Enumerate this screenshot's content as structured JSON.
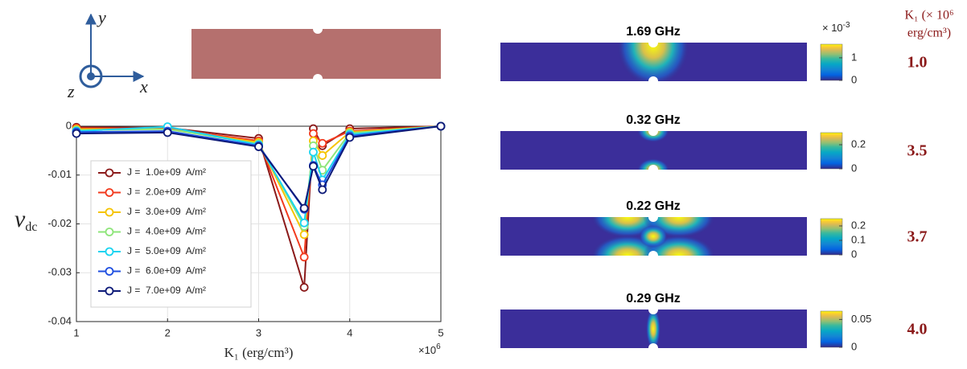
{
  "axes_diagram": {
    "x": "x",
    "y": "y",
    "z": "z"
  },
  "k1_header": {
    "line1": "K₁ (× 10⁶",
    "line2": "erg/cm³)"
  },
  "chart_data": [
    {
      "type": "line",
      "xlabel": "K₁ (erg/cm³)",
      "ylabel": {
        "symbol": "v",
        "sub": "dc"
      },
      "x_exponent": {
        "base": "×10",
        "exp": "6"
      },
      "x": [
        1,
        2,
        3,
        3.5,
        3.6,
        3.7,
        4,
        5
      ],
      "xlim": [
        1,
        5
      ],
      "xticks": [
        1,
        2,
        3,
        4,
        5
      ],
      "ylim": [
        -0.04,
        0
      ],
      "yticks": [
        0,
        -0.01,
        -0.02,
        -0.03,
        -0.04
      ],
      "grid": true,
      "legend": "lower-left",
      "series": [
        {
          "name": "J =  1.0e+09  A/m²",
          "color": "#8b1a1a",
          "values": [
            -0.0002,
            -0.0003,
            -0.0025,
            -0.033,
            -0.0005,
            -0.004,
            -0.0005,
            0
          ]
        },
        {
          "name": "J =  2.0e+09  A/m²",
          "color": "#f23a1e",
          "values": [
            -0.0004,
            -0.0005,
            -0.003,
            -0.0268,
            -0.0015,
            -0.0035,
            -0.001,
            0
          ]
        },
        {
          "name": "J =  3.0e+09  A/m²",
          "color": "#f5c400",
          "values": [
            -0.0006,
            -0.0006,
            -0.0033,
            -0.0222,
            -0.003,
            -0.006,
            -0.0012,
            0
          ]
        },
        {
          "name": "J =  4.0e+09  A/m²",
          "color": "#8ee57a",
          "values": [
            -0.0008,
            -0.0006,
            -0.0036,
            -0.0205,
            -0.004,
            -0.009,
            -0.0014,
            0
          ]
        },
        {
          "name": "J =  5.0e+09  A/m²",
          "color": "#1ad4f0",
          "values": [
            -0.001,
            -0.0001,
            -0.0038,
            -0.0198,
            -0.0053,
            -0.011,
            -0.0017,
            0
          ]
        },
        {
          "name": "J =  6.0e+09  A/m²",
          "color": "#1f4fe0",
          "values": [
            -0.0012,
            -0.001,
            -0.004,
            -0.017,
            -0.008,
            -0.012,
            -0.002,
            0
          ]
        },
        {
          "name": "J =  7.0e+09  A/m²",
          "color": "#0d1a78",
          "values": [
            -0.0015,
            -0.0013,
            -0.0042,
            -0.0168,
            -0.0082,
            -0.013,
            -0.0023,
            0
          ]
        }
      ]
    },
    {
      "type": "heatmap",
      "title": "1.69 GHz",
      "clim": [
        0,
        1.6
      ],
      "cticks": [
        0,
        1
      ],
      "c_exponent": {
        "base": "× 10",
        "exp": "-3"
      },
      "k1_label": "1.0"
    },
    {
      "type": "heatmap",
      "title": "0.32 GHz",
      "clim": [
        0,
        0.3
      ],
      "cticks": [
        0,
        0.2
      ],
      "k1_label": "3.5"
    },
    {
      "type": "heatmap",
      "title": "0.22 GHz",
      "clim": [
        0,
        0.25
      ],
      "cticks": [
        0,
        0.1,
        0.2
      ],
      "k1_label": "3.7"
    },
    {
      "type": "heatmap",
      "title": "0.29 GHz",
      "clim": [
        0,
        0.065
      ],
      "cticks": [
        0,
        0.05
      ],
      "k1_label": "4.0"
    }
  ]
}
